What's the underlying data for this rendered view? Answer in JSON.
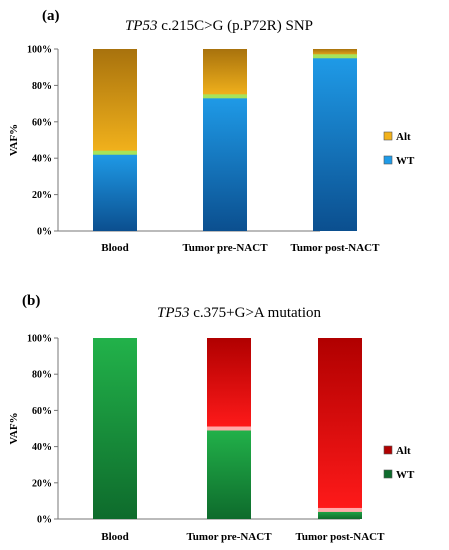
{
  "chart_data": [
    {
      "type": "bar",
      "stacked": true,
      "panel": "(a)",
      "title_italic": "TP53",
      "title_rest": " c.215C>G (p.P72R) SNP",
      "ylabel": "VAF%",
      "yticks": [
        "0%",
        "20%",
        "40%",
        "60%",
        "80%",
        "100%"
      ],
      "ylim": [
        0,
        100
      ],
      "categories": [
        "Blood",
        "Tumor pre-NACT",
        "Tumor post-NACT"
      ],
      "series": [
        {
          "name": "WT",
          "values": [
            43,
            74,
            96
          ]
        },
        {
          "name": "Alt",
          "values": [
            57,
            26,
            4
          ]
        }
      ],
      "colors": {
        "WT": "#1f9be8",
        "Alt": "#f2b21c",
        "WT_dark": "#0b4f8f",
        "Alt_dark": "#a8720d",
        "band": "#a6e35a"
      },
      "legend": "right"
    },
    {
      "type": "bar",
      "stacked": true,
      "panel": "(b)",
      "title_italic": "TP53",
      "title_rest": " c.375+G>A mutation",
      "ylabel": "VAF%",
      "yticks": [
        "0%",
        "20%",
        "40%",
        "60%",
        "80%",
        "100%"
      ],
      "ylim": [
        0,
        100
      ],
      "categories": [
        "Blood",
        "Tumor pre-NACT",
        "Tumor post-NACT"
      ],
      "series": [
        {
          "name": "WT",
          "values": [
            100,
            50,
            5
          ]
        },
        {
          "name": "Alt",
          "values": [
            0,
            50,
            95
          ]
        }
      ],
      "colors": {
        "WT": "#22b24a",
        "Alt": "#ff1a1a",
        "WT_dark": "#0e6b2c",
        "Alt_dark": "#b00000",
        "band": "#ffaaaa"
      },
      "legend": "right"
    }
  ]
}
